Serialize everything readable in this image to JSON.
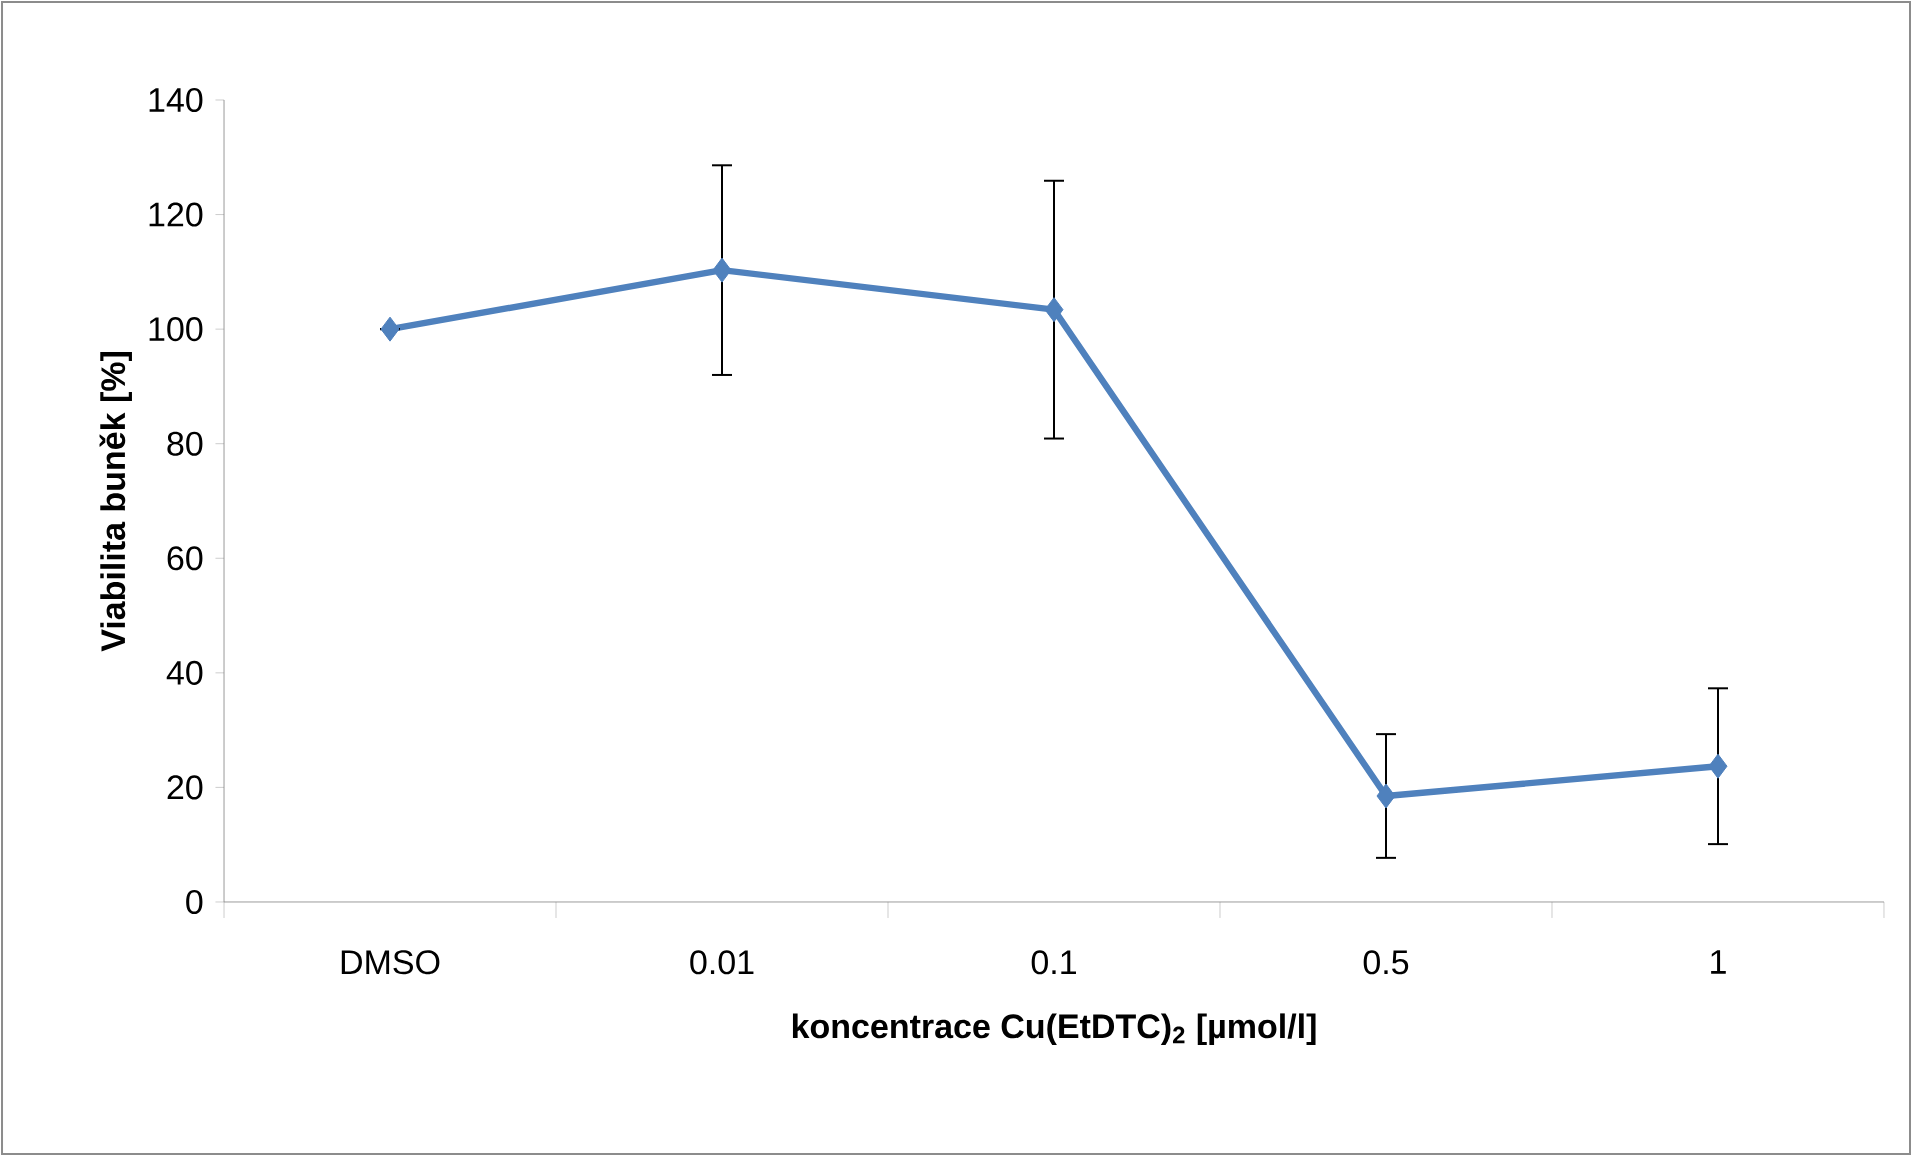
{
  "chart_data": {
    "type": "line",
    "xlabel": "koncentrace Cu(EtDTC)$_{2}$ [µmol/l]",
    "ylabel": "Viabilita buněk [%]",
    "categories": [
      "DMSO",
      "0.01",
      "0.1",
      "0.5",
      "1"
    ],
    "values": [
      100,
      110.3,
      103.4,
      18.5,
      23.7
    ],
    "errors": [
      null,
      18.3,
      22.5,
      10.8,
      13.6
    ],
    "color": "#4f81bd",
    "marker": "diamond",
    "line_style": "solid",
    "ylim": [
      0,
      140
    ],
    "yticks": [
      0,
      20,
      40,
      60,
      80,
      100,
      120,
      140
    ],
    "grid": false
  }
}
